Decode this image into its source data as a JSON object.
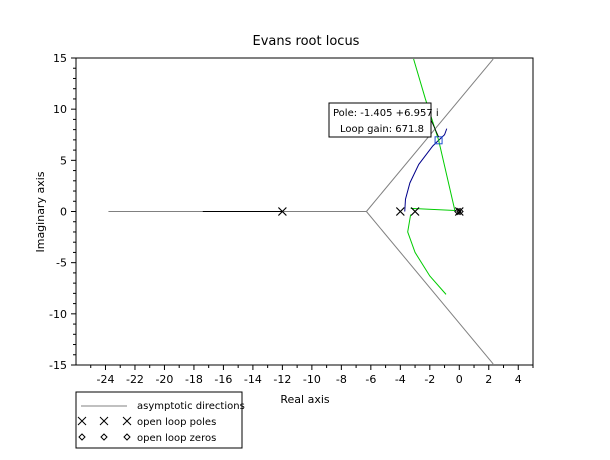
{
  "chart_data": {
    "type": "line",
    "title": "Evans root locus",
    "xlabel": "Real axis",
    "ylabel": "Imaginary axis",
    "xlim": [
      -26,
      5
    ],
    "ylim": [
      -15,
      15
    ],
    "xticks": [
      "-24",
      "-22",
      "-20",
      "-18",
      "-16",
      "-14",
      "-12",
      "-10",
      "-8",
      "-6",
      "-4",
      "-2",
      "0",
      "2",
      "4"
    ],
    "yticks": [
      "15",
      "10",
      "5",
      "0",
      "-5",
      "-10",
      "-15"
    ],
    "series": [
      {
        "name": "asymptotic directions",
        "color": "#808080",
        "segments": [
          [
            [
              -23.8,
              0
            ],
            [
              -6.3,
              0
            ]
          ],
          [
            [
              -6.3,
              0
            ],
            [
              2.3,
              14.9
            ]
          ],
          [
            [
              -6.3,
              0
            ],
            [
              2.3,
              -14.9
            ]
          ]
        ]
      },
      {
        "color": "#000000",
        "segments": [
          [
            [
              -17.4,
              0
            ],
            [
              -12,
              0
            ]
          ]
        ]
      },
      {
        "color": "#00008b",
        "segments": [
          [
            [
              -3.7,
              0
            ],
            [
              -3.65,
              1.2
            ],
            [
              -3.35,
              2.8
            ],
            [
              -2.75,
              4.6
            ],
            [
              -1.8,
              6.4
            ],
            [
              -1.4,
              6.96
            ],
            [
              -1.0,
              7.5
            ],
            [
              -0.85,
              8.1
            ]
          ]
        ]
      },
      {
        "color": "#00cc00",
        "segments": [
          [
            [
              -3.1,
              14.9
            ],
            [
              -2.3,
              11
            ],
            [
              -1.4,
              6.96
            ],
            [
              -0.3,
              0.1
            ],
            [
              -3.3,
              0.3
            ]
          ],
          [
            [
              -3.3,
              -0.3
            ],
            [
              -3.5,
              -2
            ],
            [
              -3.0,
              -4
            ],
            [
              -2.0,
              -6.3
            ],
            [
              -0.9,
              -8.1
            ]
          ]
        ]
      }
    ],
    "open_loop_poles": [
      [
        -12,
        0
      ],
      [
        -4,
        0
      ],
      [
        -3,
        0
      ],
      [
        0,
        0
      ]
    ],
    "open_loop_zeros": [
      [
        -0.1,
        0
      ],
      [
        0.05,
        0
      ]
    ],
    "datatip": {
      "point": [
        -1.405,
        6.957
      ],
      "lines": [
        "Pole: -1.405 +6.957 i",
        "Loop gain: 671.8"
      ]
    },
    "legend": {
      "placement": "bottom-left",
      "entries": [
        {
          "marker": "line",
          "color": "#808080",
          "label": "asymptotic directions"
        },
        {
          "marker": "cross",
          "color": "#000000",
          "label": "open loop poles"
        },
        {
          "marker": "diamond",
          "color": "#000000",
          "label": "open loop zeros"
        }
      ]
    },
    "grid": false
  }
}
